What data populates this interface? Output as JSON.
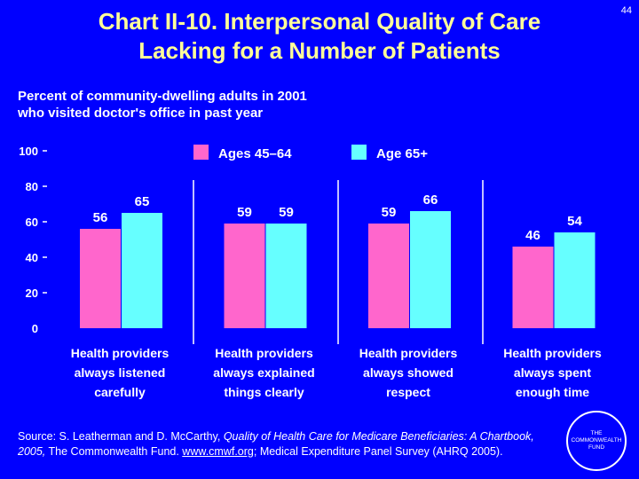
{
  "slide": {
    "title_line1": "Chart II-10. Interpersonal Quality of Care",
    "title_line2": "Lacking for a Number of Patients",
    "number": "44",
    "subtitle_line1": "Percent of community-dwelling adults in 2001",
    "subtitle_line2": "who visited doctor's office in past year",
    "source": {
      "prefix": "Source: S. Leatherman and D. McCarthy, ",
      "italic": "Quality of Health Care for Medicare Beneficiaries: A Chartbook, 2005,",
      "middle": " The Commonwealth Fund. ",
      "link": "www.cmwf.org",
      "suffix": "; Medical Expenditure Panel Survey (AHRQ 2005)."
    },
    "logo_lines": [
      "THE",
      "COMMONWEALTH",
      "FUND"
    ]
  },
  "chart_data": {
    "type": "bar",
    "categories": [
      [
        "Health providers",
        "always listened",
        "carefully"
      ],
      [
        "Health providers",
        "always explained",
        "things clearly"
      ],
      [
        "Health providers",
        "always showed",
        "respect"
      ],
      [
        "Health providers",
        "always spent",
        "enough time"
      ]
    ],
    "series": [
      {
        "name": "Ages 45–64",
        "values": [
          56,
          59,
          59,
          46
        ],
        "color": "#FF66CC"
      },
      {
        "name": "Age 65+",
        "values": [
          65,
          59,
          66,
          54
        ],
        "color": "#66FFFF"
      }
    ],
    "y_ticks": [
      "100",
      "80",
      "60",
      "40",
      "20",
      "0"
    ],
    "ylim": [
      0,
      100
    ],
    "grid": false,
    "legend_position": "top-center"
  }
}
